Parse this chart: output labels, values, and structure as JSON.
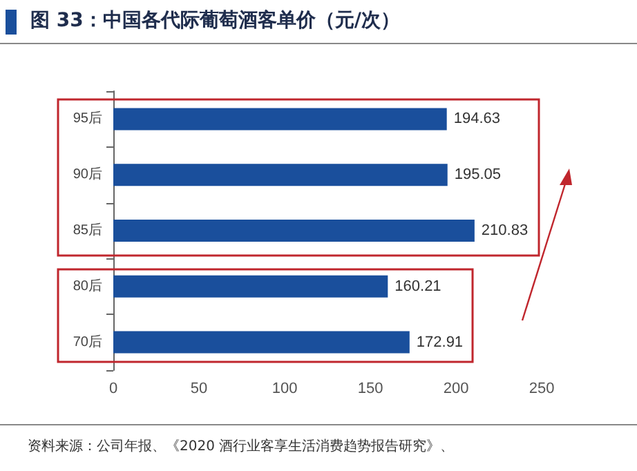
{
  "chart_data": {
    "type": "bar",
    "orientation": "horizontal",
    "title": "图 33：中国各代际葡萄酒客单价（元/次）",
    "categories": [
      "95后",
      "90后",
      "85后",
      "80后",
      "70后"
    ],
    "values": [
      194.63,
      195.05,
      210.83,
      160.21,
      172.91
    ],
    "color": "#1a4f9c",
    "data_labels": true,
    "grid": false,
    "xlim": [
      0,
      250
    ],
    "xticks": [
      0,
      50,
      100,
      150,
      200,
      250
    ],
    "annotations": [
      "资料来源：公司年报、《2020 酒行业客享生活消费趋势报告研究》、"
    ]
  }
}
